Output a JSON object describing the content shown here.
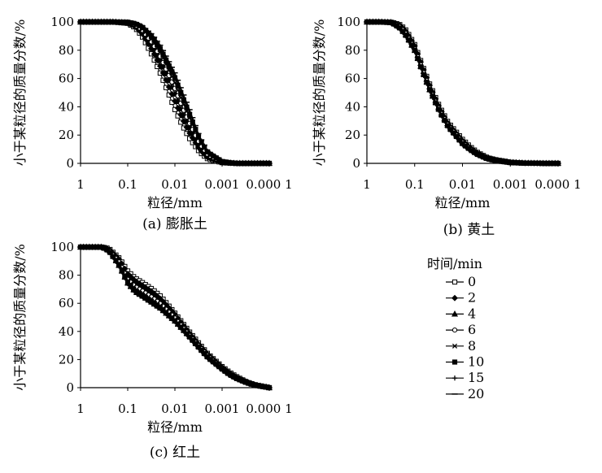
{
  "figure": {
    "legend": {
      "title": "时间/min",
      "entries": [
        "0",
        "2",
        "4",
        "6",
        "8",
        "10",
        "15",
        "20"
      ]
    }
  },
  "chart_data": [
    {
      "type": "line",
      "caption": "(a) 膨胀土",
      "xlabel": "粒径/mm",
      "ylabel": "小于某粒径的质量分数/%",
      "x_scale": "log",
      "x_reversed": true,
      "xlim": [
        1,
        0.0001
      ],
      "ylim": [
        0,
        100
      ],
      "xticks": [
        "1",
        "0.1",
        "0.01",
        "0.001",
        "0.000 1"
      ],
      "yticks": [
        "0",
        "20",
        "40",
        "60",
        "80",
        "100"
      ],
      "x": [
        1,
        0.5,
        0.2,
        0.1,
        0.07,
        0.05,
        0.03,
        0.02,
        0.01,
        0.007,
        0.005,
        0.003,
        0.002,
        0.001,
        0.0007,
        0.0005,
        0.0001
      ],
      "series": [
        {
          "name": "0",
          "values": [
            100,
            100,
            100,
            99,
            96,
            90,
            76,
            63,
            38,
            27,
            18,
            8,
            3,
            0.5,
            0.2,
            0,
            0
          ]
        },
        {
          "name": "2",
          "values": [
            100,
            100,
            100,
            99.3,
            97,
            92,
            80,
            68,
            44,
            32,
            22,
            10,
            4,
            0.7,
            0.3,
            0,
            0
          ]
        },
        {
          "name": "4",
          "values": [
            100,
            100,
            100,
            99.5,
            97.5,
            93.5,
            83,
            72,
            49,
            36,
            26,
            12,
            5,
            0.9,
            0.3,
            0,
            0
          ]
        },
        {
          "name": "6",
          "values": [
            100,
            100,
            100,
            99.6,
            98,
            94.5,
            85,
            75,
            53,
            40,
            29,
            14,
            6,
            1,
            0.4,
            0,
            0
          ]
        },
        {
          "name": "8",
          "values": [
            100,
            100,
            100,
            99.7,
            98.5,
            95.5,
            87,
            78,
            57,
            44,
            33,
            16,
            7,
            1.2,
            0.4,
            0,
            0
          ]
        },
        {
          "name": "10",
          "values": [
            100,
            100,
            100,
            99.8,
            98.8,
            96.5,
            89,
            80,
            60,
            47,
            35,
            17,
            7.5,
            1.3,
            0.5,
            0,
            0
          ]
        },
        {
          "name": "15",
          "values": [
            100,
            100,
            100,
            99.9,
            99,
            97,
            90,
            82,
            62,
            49,
            37,
            18,
            8,
            1.4,
            0.5,
            0,
            0
          ]
        },
        {
          "name": "20",
          "values": [
            100,
            100,
            100,
            100,
            99.2,
            97.5,
            91,
            83,
            64,
            51,
            39,
            19,
            8.5,
            1.5,
            0.5,
            0,
            0
          ]
        }
      ]
    },
    {
      "type": "line",
      "caption": "(b) 黄土",
      "xlabel": "粒径/mm",
      "ylabel": "小于某粒径的质量分数/%",
      "x_scale": "log",
      "x_reversed": true,
      "xlim": [
        1,
        0.0001
      ],
      "ylim": [
        0,
        100
      ],
      "xticks": [
        "1",
        "0.1",
        "0.01",
        "0.001",
        "0.000 1"
      ],
      "yticks": [
        "0",
        "20",
        "40",
        "60",
        "80",
        "100"
      ],
      "x": [
        1,
        0.5,
        0.3,
        0.2,
        0.15,
        0.1,
        0.07,
        0.05,
        0.03,
        0.02,
        0.01,
        0.007,
        0.005,
        0.003,
        0.002,
        0.001,
        0.0005,
        0.0002,
        0.0001
      ],
      "series": [
        {
          "name": "0",
          "values": [
            100,
            100,
            99.8,
            98,
            94,
            84,
            70,
            57,
            40,
            29,
            17,
            12,
            8,
            4,
            2.5,
            0.8,
            0.2,
            0,
            0
          ]
        },
        {
          "name": "2",
          "values": [
            100,
            100,
            99.7,
            97.5,
            93,
            83,
            69,
            56,
            39,
            28,
            16,
            11,
            7.5,
            3.8,
            2.3,
            0.7,
            0.2,
            0,
            0
          ]
        },
        {
          "name": "4",
          "values": [
            100,
            100,
            99.7,
            97,
            92,
            82,
            68,
            55,
            38,
            27.5,
            15.5,
            11,
            7.2,
            3.6,
            2.2,
            0.7,
            0.2,
            0,
            0
          ]
        },
        {
          "name": "6",
          "values": [
            100,
            100,
            99.6,
            96.5,
            91.5,
            81,
            67,
            54,
            37.5,
            27,
            15,
            10.5,
            7,
            3.5,
            2.1,
            0.6,
            0.2,
            0,
            0
          ]
        },
        {
          "name": "8",
          "values": [
            100,
            100,
            99.5,
            96,
            91,
            80.5,
            66,
            53.5,
            37,
            26.5,
            14.5,
            10,
            6.8,
            3.3,
            2,
            0.6,
            0.1,
            0,
            0
          ]
        },
        {
          "name": "10",
          "values": [
            100,
            100,
            99.4,
            95.5,
            90,
            80,
            65.5,
            53,
            36.5,
            26,
            14,
            9.8,
            6.5,
            3.2,
            1.9,
            0.5,
            0.1,
            0,
            0
          ]
        },
        {
          "name": "15",
          "values": [
            100,
            100,
            99.3,
            95,
            89.5,
            79,
            65,
            52,
            36,
            25.5,
            13.5,
            9.5,
            6.3,
            3,
            1.8,
            0.5,
            0.1,
            0,
            0
          ]
        },
        {
          "name": "20",
          "values": [
            100,
            100,
            99.2,
            94.5,
            89,
            78.5,
            64.5,
            51.5,
            35.5,
            25,
            13,
            9.2,
            6,
            2.9,
            1.7,
            0.5,
            0.1,
            0,
            0
          ]
        }
      ]
    },
    {
      "type": "line",
      "caption": "(c) 红土",
      "xlabel": "粒径/mm",
      "ylabel": "小于某粒径的质量分数/%",
      "x_scale": "log",
      "x_reversed": true,
      "xlim": [
        1,
        0.0001
      ],
      "ylim": [
        0,
        100
      ],
      "xticks": [
        "1",
        "0.1",
        "0.01",
        "0.001",
        "0.000 1"
      ],
      "yticks": [
        "0",
        "20",
        "40",
        "60",
        "80",
        "100"
      ],
      "x": [
        1,
        0.5,
        0.35,
        0.25,
        0.15,
        0.1,
        0.07,
        0.05,
        0.03,
        0.02,
        0.01,
        0.005,
        0.003,
        0.002,
        0.001,
        0.0007,
        0.0005,
        0.0003,
        0.0002,
        0.0001
      ],
      "series": [
        {
          "name": "0",
          "values": [
            100,
            100,
            100,
            99,
            92,
            83,
            78,
            75,
            70,
            65,
            53,
            40,
            31,
            24,
            15,
            11,
            8,
            4,
            2,
            0
          ]
        },
        {
          "name": "2",
          "values": [
            100,
            100,
            100,
            98.5,
            91,
            81,
            76,
            73,
            68,
            63,
            52,
            39,
            30,
            23.5,
            14.5,
            10.5,
            7.5,
            4,
            2,
            0
          ]
        },
        {
          "name": "4",
          "values": [
            100,
            100,
            100,
            98,
            90,
            79,
            74,
            71,
            66,
            61,
            50.5,
            38,
            29.5,
            23,
            14,
            10,
            7.2,
            3.8,
            1.8,
            0
          ]
        },
        {
          "name": "6",
          "values": [
            100,
            100,
            100,
            97.8,
            89,
            77,
            72,
            69,
            64,
            59.5,
            49.5,
            37.5,
            29,
            22.5,
            13.8,
            9.8,
            7,
            3.7,
            1.8,
            0
          ]
        },
        {
          "name": "8",
          "values": [
            100,
            100,
            100,
            97.5,
            88,
            76,
            70.5,
            67.5,
            62.5,
            58,
            48.5,
            37,
            28.5,
            22,
            13.5,
            9.6,
            6.8,
            3.6,
            1.7,
            0
          ]
        },
        {
          "name": "10",
          "values": [
            100,
            100,
            100,
            97.2,
            87,
            75,
            69,
            66,
            61,
            57,
            47.5,
            36.5,
            28,
            21.5,
            13.2,
            9.4,
            6.6,
            3.5,
            1.7,
            0
          ]
        },
        {
          "name": "15",
          "values": [
            100,
            100,
            100,
            97,
            86,
            74,
            68,
            65,
            60,
            56,
            47,
            36,
            27.5,
            21,
            13,
            9.2,
            6.4,
            3.4,
            1.6,
            0
          ]
        },
        {
          "name": "20",
          "values": [
            100,
            100,
            100,
            96.8,
            85,
            73,
            67,
            64,
            59,
            55,
            46,
            35.5,
            27,
            20.5,
            12.8,
            9,
            6.2,
            3.3,
            1.6,
            0
          ]
        }
      ]
    }
  ]
}
